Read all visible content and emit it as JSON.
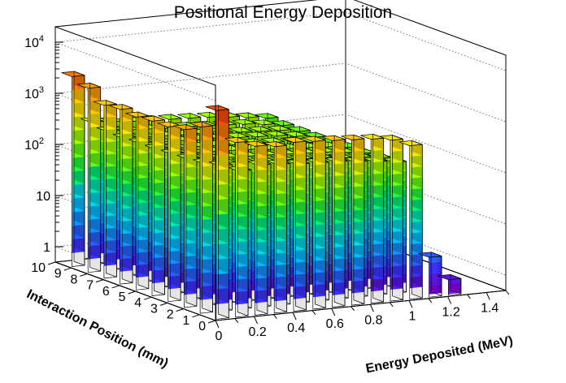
{
  "chart_data": {
    "type": "bar3d",
    "title": "Positional Energy Deposition",
    "xlabel": "Energy Deposited (MeV)",
    "ylabel": "Interaction Position (mm)",
    "x_ticks": [
      "0",
      "0.2",
      "0.4",
      "0.6",
      "0.8",
      "1",
      "1.2",
      "1.4"
    ],
    "y_ticks": [
      "0",
      "1",
      "2",
      "3",
      "4",
      "5",
      "6",
      "7",
      "8",
      "9",
      "10"
    ],
    "z_ticks": [
      {
        "base": "1",
        "exp": ""
      },
      {
        "base": "10",
        "exp": ""
      },
      {
        "base": "10",
        "exp": "2"
      },
      {
        "base": "10",
        "exp": "3"
      },
      {
        "base": "10",
        "exp": "4"
      }
    ],
    "z_scale": "log",
    "xlim": [
      0,
      1.5
    ],
    "ylim": [
      0,
      10
    ],
    "zlim": [
      0.5,
      20000
    ],
    "grid": true,
    "colormap": "rainbow",
    "x_bins": [
      0.05,
      0.15,
      0.25,
      0.35,
      0.45,
      0.55,
      0.65,
      0.75,
      0.85,
      0.95,
      1.05,
      1.15,
      1.25
    ],
    "y_bins": [
      0.5,
      1.5,
      2.5,
      3.5,
      4.5,
      5.5,
      6.5,
      7.5,
      8.5,
      9.5
    ],
    "counts": [
      [
        6000,
        1300,
        1000,
        900,
        1000,
        950,
        900,
        850,
        800,
        700,
        500,
        3,
        1
      ],
      [
        2200,
        350,
        250,
        300,
        280,
        260,
        250,
        240,
        220,
        200,
        180,
        0,
        0
      ],
      [
        1500,
        300,
        280,
        260,
        250,
        240,
        230,
        220,
        200,
        190,
        170,
        0,
        0
      ],
      [
        1300,
        280,
        270,
        250,
        240,
        230,
        220,
        210,
        200,
        180,
        160,
        0,
        0
      ],
      [
        1300,
        270,
        260,
        250,
        240,
        230,
        210,
        200,
        190,
        180,
        160,
        0,
        0
      ],
      [
        1200,
        260,
        250,
        240,
        230,
        220,
        210,
        200,
        190,
        170,
        150,
        0,
        0
      ],
      [
        1300,
        260,
        250,
        240,
        230,
        220,
        210,
        200,
        190,
        170,
        150,
        0,
        0
      ],
      [
        1200,
        250,
        240,
        230,
        220,
        210,
        200,
        190,
        180,
        170,
        150,
        0,
        0
      ],
      [
        2000,
        260,
        250,
        240,
        230,
        220,
        210,
        200,
        190,
        170,
        150,
        0,
        0
      ],
      [
        2600,
        300,
        280,
        260,
        250,
        240,
        230,
        220,
        200,
        180,
        160,
        0,
        0
      ]
    ]
  }
}
